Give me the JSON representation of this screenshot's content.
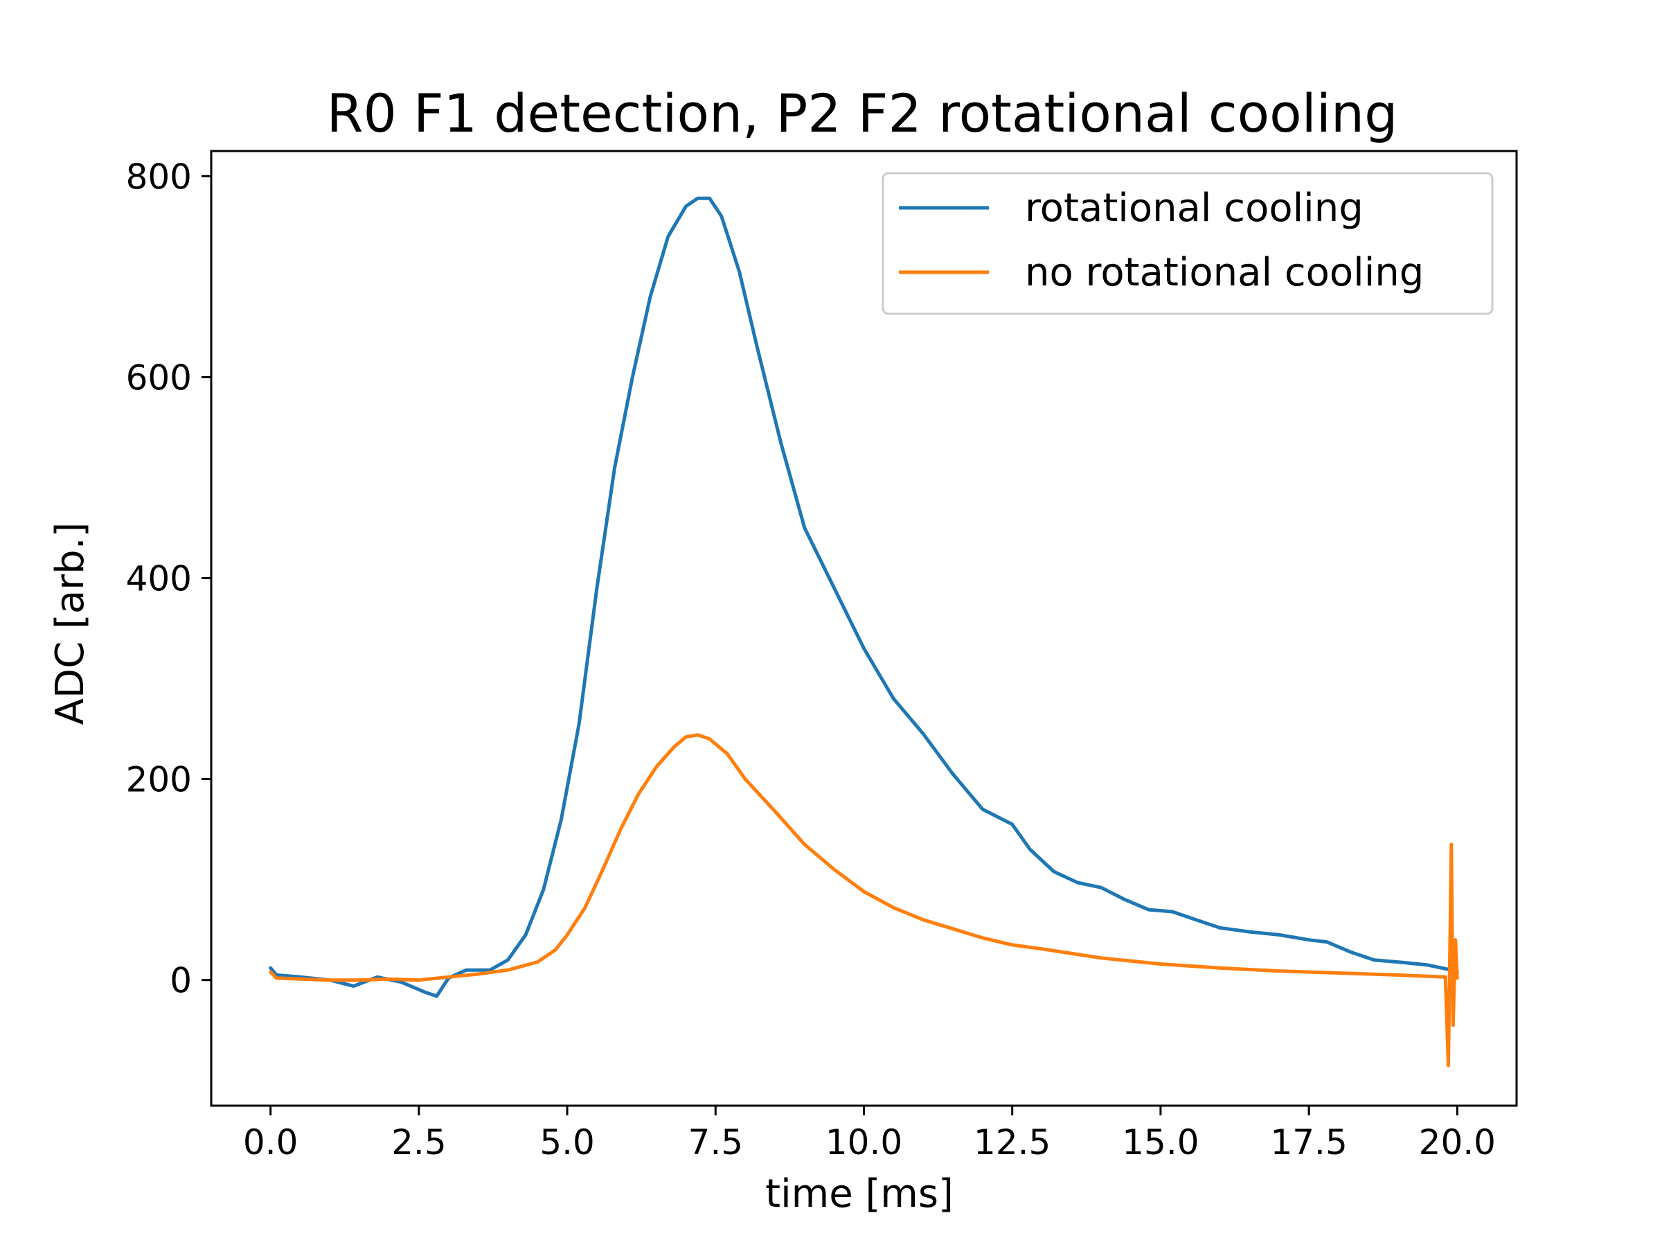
{
  "chart_data": {
    "type": "line",
    "title": "R0 F1 detection, P2 F2 rotational cooling",
    "xlabel": "time [ms]",
    "ylabel": "ADC [arb.]",
    "xlim": [
      -1.0,
      21.0
    ],
    "ylim": [
      -125,
      825
    ],
    "xticks": [
      0.0,
      2.5,
      5.0,
      7.5,
      10.0,
      12.5,
      15.0,
      17.5,
      20.0
    ],
    "xtick_labels": [
      "0.0",
      "2.5",
      "5.0",
      "7.5",
      "10.0",
      "12.5",
      "15.0",
      "17.5",
      "20.0"
    ],
    "yticks": [
      0,
      200,
      400,
      600,
      800
    ],
    "ytick_labels": [
      "0",
      "200",
      "400",
      "600",
      "800"
    ],
    "grid": false,
    "legend_position": "top-right",
    "series": [
      {
        "name": "rotational cooling",
        "color": "#1f77b4",
        "x": [
          0.0,
          0.1,
          0.5,
          1.0,
          1.4,
          1.8,
          2.2,
          2.6,
          2.8,
          3.0,
          3.3,
          3.7,
          4.0,
          4.3,
          4.6,
          4.9,
          5.2,
          5.5,
          5.8,
          6.1,
          6.4,
          6.7,
          7.0,
          7.2,
          7.4,
          7.6,
          7.9,
          8.2,
          8.6,
          9.0,
          9.5,
          10.0,
          10.5,
          11.0,
          11.5,
          12.0,
          12.5,
          12.8,
          13.2,
          13.6,
          14.0,
          14.4,
          14.8,
          15.2,
          15.6,
          16.0,
          16.5,
          17.0,
          17.5,
          17.8,
          18.2,
          18.6,
          19.0,
          19.5,
          19.9,
          20.0
        ],
        "y": [
          12,
          5,
          3,
          0,
          -6,
          3,
          -2,
          -12,
          -16,
          2,
          10,
          10,
          20,
          45,
          90,
          160,
          255,
          390,
          510,
          600,
          680,
          740,
          770,
          778,
          778,
          760,
          705,
          630,
          535,
          450,
          390,
          330,
          280,
          245,
          205,
          170,
          155,
          130,
          108,
          97,
          92,
          80,
          70,
          68,
          60,
          52,
          48,
          45,
          40,
          38,
          28,
          20,
          18,
          15,
          10,
          8
        ]
      },
      {
        "name": "no rotational cooling",
        "color": "#ff7f0e",
        "x": [
          0.0,
          0.1,
          0.5,
          1.0,
          1.5,
          2.0,
          2.5,
          3.0,
          3.5,
          4.0,
          4.5,
          4.8,
          5.0,
          5.3,
          5.6,
          5.9,
          6.2,
          6.5,
          6.8,
          7.0,
          7.2,
          7.4,
          7.7,
          8.0,
          8.5,
          9.0,
          9.5,
          10.0,
          10.5,
          11.0,
          11.5,
          12.0,
          12.5,
          13.0,
          14.0,
          15.0,
          16.0,
          17.0,
          18.0,
          19.0,
          19.8,
          19.85,
          19.9,
          19.93,
          19.97,
          20.0
        ],
        "y": [
          8,
          2,
          1,
          0,
          0,
          1,
          0,
          3,
          6,
          10,
          18,
          30,
          45,
          72,
          110,
          150,
          185,
          212,
          232,
          242,
          244,
          240,
          225,
          200,
          168,
          135,
          110,
          88,
          72,
          60,
          51,
          42,
          35,
          31,
          22,
          16,
          12,
          9,
          7,
          5,
          3,
          -85,
          135,
          -45,
          40,
          2
        ]
      }
    ]
  }
}
